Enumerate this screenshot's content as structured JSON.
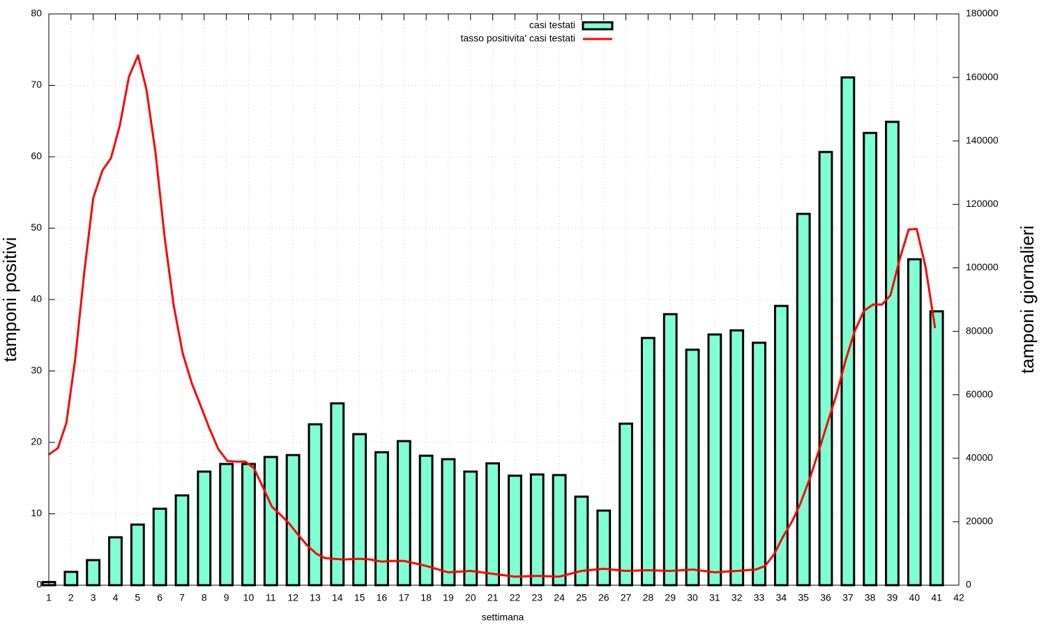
{
  "chart_data": {
    "type": "bar",
    "xlabel": "settimana",
    "ylabel": "tamponi positivi",
    "y2label": "tamponi giornalieri",
    "xlim": [
      1,
      42
    ],
    "xticks": [
      1,
      2,
      3,
      4,
      5,
      6,
      7,
      8,
      9,
      10,
      11,
      12,
      13,
      14,
      15,
      16,
      17,
      18,
      19,
      20,
      21,
      22,
      23,
      24,
      25,
      26,
      27,
      28,
      29,
      30,
      31,
      32,
      33,
      34,
      35,
      36,
      37,
      38,
      39,
      40,
      41,
      42
    ],
    "ylim": [
      0,
      80
    ],
    "yticks": [
      0,
      10,
      20,
      30,
      40,
      50,
      60,
      70,
      80
    ],
    "y2lim": [
      0,
      180000
    ],
    "y2ticks": [
      0,
      20000,
      40000,
      60000,
      80000,
      100000,
      120000,
      140000,
      160000,
      180000
    ],
    "grid": true,
    "legend": "top",
    "series": [
      {
        "name": "casi testati",
        "type": "bar",
        "axis": "y2",
        "color": "#7fffd4",
        "x": [
          1,
          2,
          3,
          4,
          5,
          6,
          7,
          8,
          9,
          10,
          11,
          12,
          13,
          14,
          15,
          16,
          17,
          18,
          19,
          20,
          21,
          22,
          23,
          24,
          25,
          26,
          27,
          28,
          29,
          30,
          31,
          32,
          33,
          34,
          35,
          36,
          37,
          38,
          39,
          40,
          41
        ],
        "values": [
          1000,
          4200,
          7900,
          15100,
          19100,
          24100,
          28300,
          35800,
          38200,
          38200,
          40400,
          41000,
          50700,
          57300,
          47600,
          41900,
          45400,
          40800,
          39700,
          35800,
          38400,
          34500,
          34900,
          34700,
          27900,
          23500,
          50900,
          77900,
          85400,
          74200,
          79000,
          80300,
          76400,
          88000,
          117000,
          136500,
          160000,
          142500,
          146000,
          102700,
          86300
        ]
      },
      {
        "name": "tasso positivita' casi testati",
        "type": "line",
        "axis": "y",
        "color": "#ff0000",
        "x": [
          1,
          1.41,
          1.79,
          2.19,
          2.6,
          3.0,
          3.42,
          3.8,
          4.2,
          4.61,
          5.02,
          5.4,
          5.81,
          6.22,
          6.62,
          7.03,
          7.44,
          7.82,
          8.23,
          8.63,
          9.04,
          9.45,
          9.86,
          10.24,
          10.65,
          11.05,
          11.46,
          11.84,
          12.25,
          12.66,
          13.06,
          13.44,
          13.85,
          14.26,
          15,
          15.5,
          16,
          16.5,
          17,
          18,
          19,
          20,
          21,
          22,
          23,
          24,
          25,
          26,
          27,
          28,
          29,
          30,
          31,
          32,
          32.86,
          33.27,
          33.67,
          34.08,
          34.5,
          34.87,
          35.28,
          35.68,
          36.09,
          36.5,
          36.9,
          37.3,
          37.72,
          38.13,
          38.54,
          38.92,
          39.33,
          39.74,
          40.1,
          40.5,
          40.93
        ],
        "values": [
          18.3,
          19.2,
          22.7,
          31.7,
          43.9,
          54.2,
          58.1,
          59.8,
          64.4,
          71.2,
          74.2,
          69.4,
          60.5,
          48.7,
          39.3,
          32.5,
          28.3,
          25.3,
          22.0,
          19.1,
          17.4,
          17.3,
          17.3,
          16.4,
          13.7,
          11.0,
          9.8,
          8.6,
          7.0,
          5.5,
          4.4,
          3.8,
          3.7,
          3.6,
          3.7,
          3.6,
          3.3,
          3.4,
          3.4,
          2.7,
          1.8,
          2.0,
          1.6,
          1.2,
          1.3,
          1.2,
          2.0,
          2.3,
          2.0,
          2.1,
          2.0,
          2.2,
          1.8,
          2.0,
          2.2,
          2.7,
          4.3,
          6.8,
          9.0,
          11.5,
          14.9,
          18.7,
          22.8,
          26.8,
          31.5,
          35.5,
          38.4,
          39.3,
          39.3,
          40.6,
          45.6,
          49.8,
          49.9,
          44.6,
          36.0
        ]
      }
    ]
  }
}
